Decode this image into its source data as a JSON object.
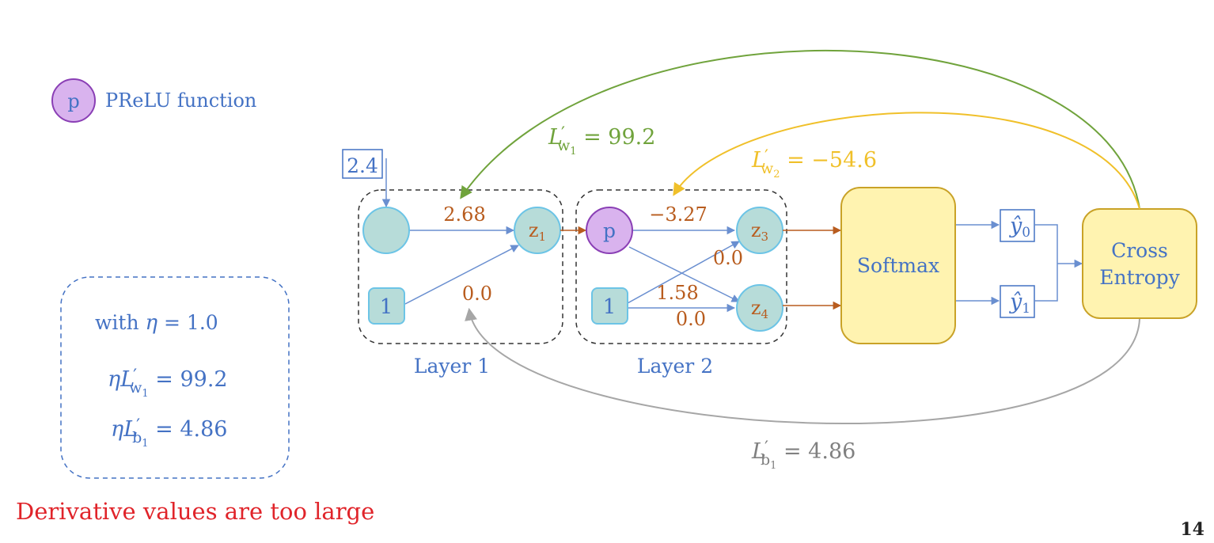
{
  "legend": {
    "symbol": "p",
    "label": "PReLU function"
  },
  "learning_rate_box": {
    "line1_prefix": "with ",
    "line1_eta": "η",
    "line1_value": " = 1.0",
    "line2_eta": "η",
    "line2_L": "L",
    "line2_prime": "′",
    "line2_sub": "w",
    "line2_sub_index": "1",
    "line2_value": " = 99.2",
    "line3_eta": "η",
    "line3_L": "L",
    "line3_prime": "′",
    "line3_sub": "b",
    "line3_sub_index": "1",
    "line3_value": " = 4.86"
  },
  "warning": "Derivative values are too large",
  "page_number": "14",
  "network": {
    "input_value": "2.4",
    "layer1_label": "Layer 1",
    "layer2_label": "Layer 2",
    "bias1": "1",
    "bias2": "1",
    "prelu": "p",
    "z1": "z",
    "z1_sub": "1",
    "z3": "z",
    "z3_sub": "3",
    "z4": "z",
    "z4_sub": "4",
    "w1": "2.68",
    "b1": "0.0",
    "w2": "−3.27",
    "w_p_z4": "0.0",
    "w_b2_z3": "1.58",
    "b_z4": "0.0",
    "softmax": "Softmax",
    "y0": "ŷ",
    "y0_sub": "0",
    "y1": "ŷ",
    "y1_sub": "1",
    "cross_entropy_1": "Cross",
    "cross_entropy_2": "Entropy"
  },
  "gradients": {
    "dw1_L": "L",
    "dw1_prime": "′",
    "dw1_sub": "w",
    "dw1_sub_index": "1",
    "dw1_value": " = 99.2",
    "dw2_L": "L",
    "dw2_prime": "′",
    "dw2_sub": "w",
    "dw2_sub_index": "2",
    "dw2_value": " = −54.6",
    "db1_L": "L",
    "db1_prime": "′",
    "db1_sub": "b",
    "db1_sub_index": "1",
    "db1_value": " = 4.86"
  },
  "colors": {
    "blue": "#4472c4",
    "brown": "#b85c1e",
    "green": "#70a33c",
    "gold": "#f0c02a",
    "gray": "#a6a6a6",
    "red": "#e0242a",
    "node_fill": "#b7dcd9",
    "node_stroke": "#6cc4e6",
    "prelu_fill": "#d9b3ee",
    "prelu_stroke": "#8a3fb5",
    "box_fill": "#fff3b0",
    "box_stroke": "#c9a227"
  }
}
